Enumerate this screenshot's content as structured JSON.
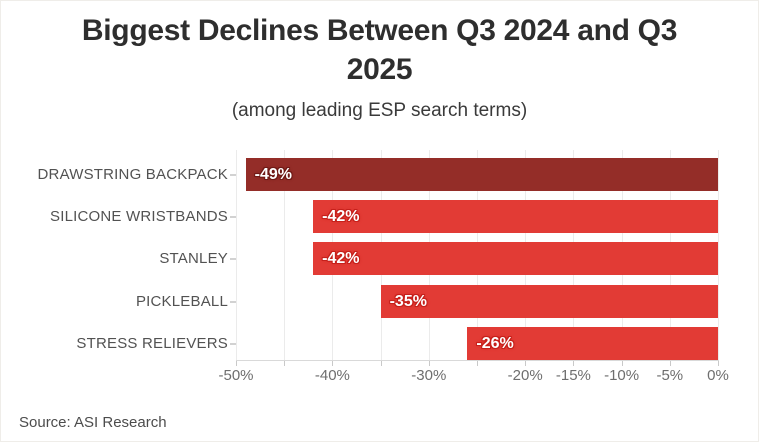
{
  "page": {
    "title": "Biggest Declines Between Q3 2024 and Q3 2025",
    "title_lines": [
      "Biggest Declines Between Q3 2024 and Q3",
      "2025"
    ],
    "subtitle": "(among leading ESP search terms)",
    "source": "Source: ASI Research"
  },
  "colors": {
    "title_text": "#2e2e2e",
    "subtitle_text": "#3a3a3a",
    "category_label_text": "#525252",
    "axis_label_text": "#6e6e6e",
    "gridline": "#ebebeb",
    "axis_line": "#d9d9d9",
    "tick": "#c9c9c9",
    "value_label_text": "#ffffff",
    "highlight_bar": "#942d28",
    "default_bar": "#e23b35"
  },
  "chart_data": {
    "type": "bar",
    "orientation": "horizontal",
    "title": "Biggest Declines Between Q3 2024 and Q3 2025",
    "subtitle": "(among leading ESP search terms)",
    "source": "Source: ASI Research",
    "categories": [
      "DRAWSTRING BACKPACK",
      "SILICONE WRISTBANDS",
      "STANLEY",
      "PICKLEBALL",
      "STRESS RELIEVERS"
    ],
    "values": [
      -49,
      -42,
      -42,
      -35,
      -26
    ],
    "data_labels": [
      "-49%",
      "-42%",
      "-42%",
      "-35%",
      "-26%"
    ],
    "bar_colors": [
      "#942d28",
      "#e23b35",
      "#e23b35",
      "#e23b35",
      "#e23b35"
    ],
    "label_halo_colors": [
      "#6f1915",
      "#c6201b",
      "#c6201b",
      "#c6201b",
      "#c6201b"
    ],
    "xlim": [
      -50,
      0
    ],
    "x_ticks": [
      {
        "value": -50,
        "label": "-50%"
      },
      {
        "value": -40,
        "label": "-40%"
      },
      {
        "value": -30,
        "label": "-30%"
      },
      {
        "value": -20,
        "label": "-20%"
      },
      {
        "value": -15,
        "label": "-15%"
      },
      {
        "value": -10,
        "label": "-10%"
      },
      {
        "value": -5,
        "label": "-5%"
      },
      {
        "value": 0,
        "label": "0%"
      }
    ],
    "grid_values": [
      -50,
      -45,
      -40,
      -35,
      -30,
      -25,
      -20,
      -15,
      -10,
      -5,
      0
    ],
    "grid": "vertical",
    "legend": "none"
  }
}
